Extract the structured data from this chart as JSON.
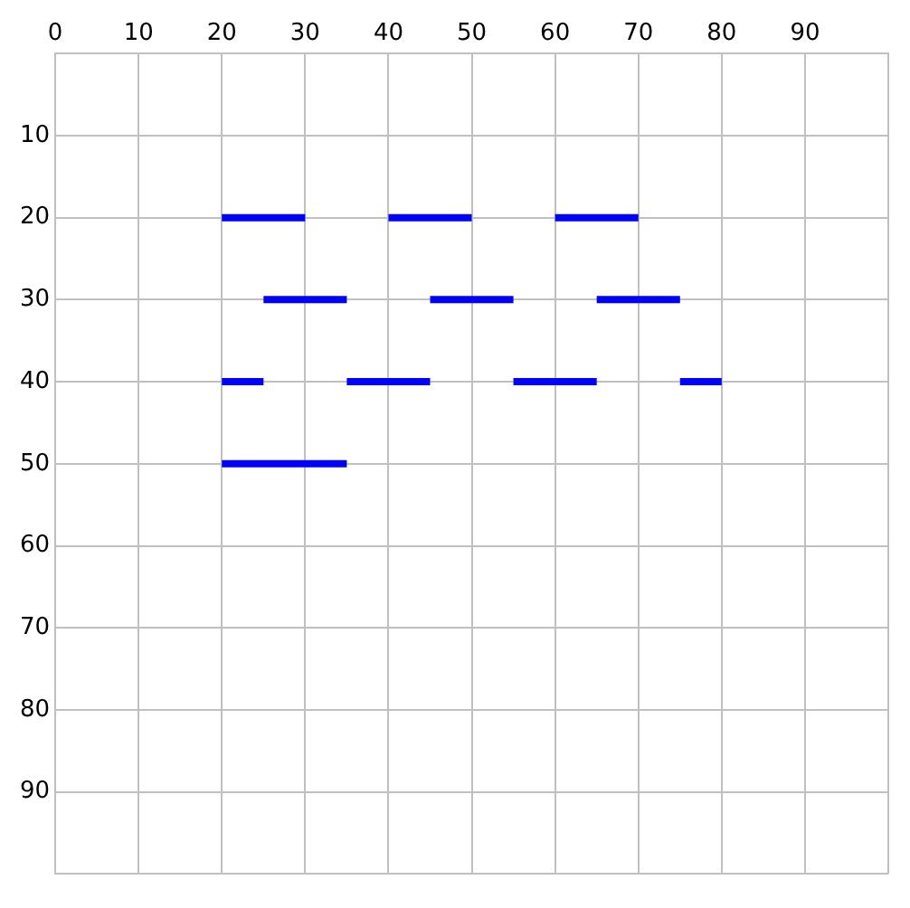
{
  "chart_data": {
    "type": "line",
    "marker": "none",
    "line_style": "solid",
    "grid": true,
    "legend": false,
    "xlim": [
      0,
      100
    ],
    "xticks": [
      0,
      10,
      20,
      30,
      40,
      50,
      60,
      70,
      80,
      90,
      {
        "value": 100,
        "label": null
      }
    ],
    "ylim": [
      100,
      0
    ],
    "yticks": [
      {
        "value": 0,
        "label": null
      },
      10,
      20,
      30,
      40,
      50,
      60,
      70,
      80,
      90,
      {
        "value": 100,
        "label": null
      }
    ],
    "series": [
      {
        "color": "#0000ff",
        "x": [
          20,
          30,
          35,
          40,
          50,
          55,
          60,
          70
        ],
        "values": [
          20,
          20,
          null,
          20,
          20,
          null,
          20,
          20
        ]
      },
      {
        "color": "#0000ff",
        "x": [
          25,
          35,
          40,
          45,
          55,
          60,
          65,
          75
        ],
        "values": [
          30,
          30,
          null,
          30,
          30,
          null,
          30,
          30
        ]
      },
      {
        "color": "#0000ff",
        "x": [
          20,
          25,
          30,
          35,
          45,
          50,
          55,
          65,
          70,
          75,
          80
        ],
        "values": [
          40,
          40,
          null,
          40,
          40,
          null,
          40,
          40,
          null,
          40,
          40
        ]
      },
      {
        "color": "#0000ff",
        "x": [
          20,
          35
        ],
        "values": [
          50,
          50
        ]
      }
    ]
  }
}
